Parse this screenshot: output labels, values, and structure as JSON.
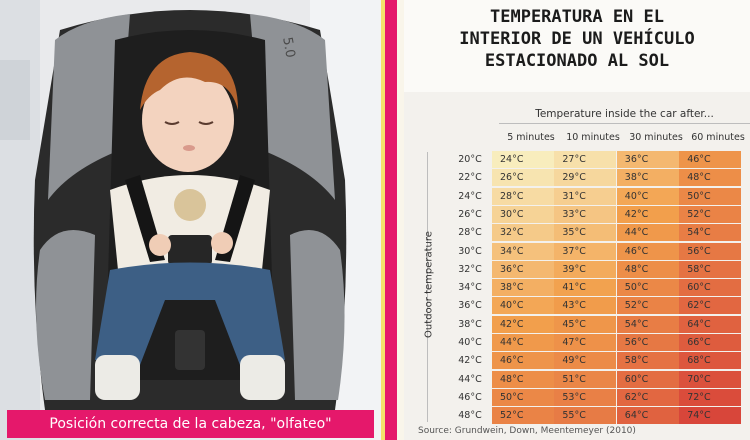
{
  "photo": {
    "caption": "Posición correcta de la cabeza, \"olfateo\"",
    "seat_mark": "5.0",
    "colors": {
      "seat": "#2a2a2a",
      "jeans": "#3d5f85",
      "hair": "#b5642f",
      "shirt": "#f1ece3",
      "background": "#e9eaec"
    }
  },
  "panel": {
    "headline": [
      "TEMPERATURA EN EL",
      "INTERIOR DE UN VEHÍCULO",
      "ESTACIONADO AL SOL"
    ],
    "source": "Source: Grundwein, Down, Meentemeyer (2010)"
  },
  "chart_data": {
    "type": "heatmap",
    "title": "Temperature inside the car after...",
    "xlabel": "Temperature inside the car after...",
    "ylabel": "Outdoor temperature",
    "columns": [
      "5 minutes",
      "10 minutes",
      "30 minutes",
      "60 minutes"
    ],
    "rows": [
      "20°C",
      "22°C",
      "24°C",
      "26°C",
      "28°C",
      "30°C",
      "32°C",
      "34°C",
      "36°C",
      "38°C",
      "40°C",
      "42°C",
      "44°C",
      "46°C",
      "48°C"
    ],
    "values": [
      [
        24,
        27,
        36,
        46
      ],
      [
        26,
        29,
        38,
        48
      ],
      [
        28,
        31,
        40,
        50
      ],
      [
        30,
        33,
        42,
        52
      ],
      [
        32,
        35,
        44,
        54
      ],
      [
        34,
        37,
        46,
        56
      ],
      [
        36,
        39,
        48,
        58
      ],
      [
        38,
        41,
        50,
        60
      ],
      [
        40,
        43,
        52,
        62
      ],
      [
        42,
        45,
        54,
        64
      ],
      [
        44,
        47,
        56,
        66
      ],
      [
        46,
        49,
        58,
        68
      ],
      [
        48,
        51,
        60,
        70
      ],
      [
        50,
        53,
        62,
        72
      ],
      [
        52,
        55,
        64,
        74
      ]
    ],
    "unit": "°C",
    "color_scale": {
      "low": "#f8edbd",
      "mid": "#f2a04c",
      "high": "#d8463a"
    }
  }
}
